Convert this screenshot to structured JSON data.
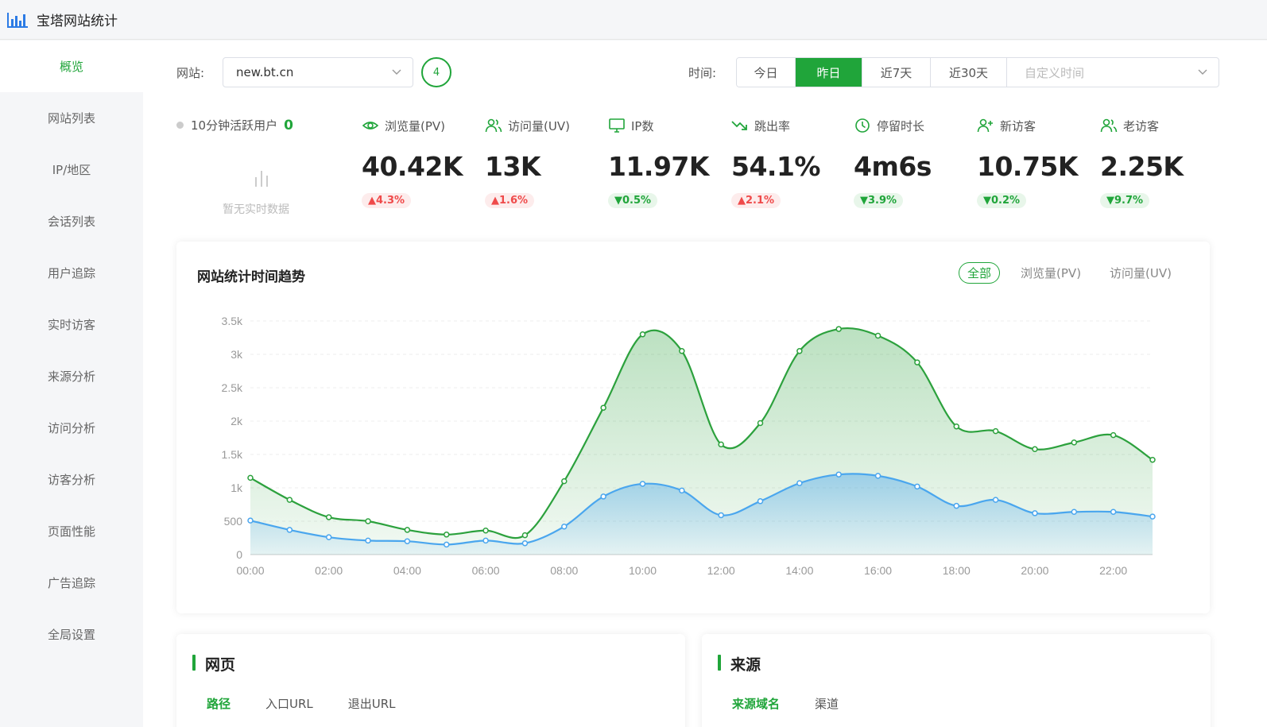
{
  "app": {
    "title": "宝塔网站统计"
  },
  "sidebar": {
    "items": [
      {
        "label": "概览",
        "active": true
      },
      {
        "label": "网站列表"
      },
      {
        "label": "IP/地区"
      },
      {
        "label": "会话列表"
      },
      {
        "label": "用户追踪"
      },
      {
        "label": "实时访客"
      },
      {
        "label": "来源分析"
      },
      {
        "label": "访问分析"
      },
      {
        "label": "访客分析"
      },
      {
        "label": "页面性能"
      },
      {
        "label": "广告追踪"
      },
      {
        "label": "全局设置"
      }
    ]
  },
  "toolbar": {
    "site_label": "网站:",
    "site_value": "new.bt.cn",
    "site_count": "4",
    "time_label": "时间:",
    "time_options": [
      "今日",
      "昨日",
      "近7天",
      "近30天"
    ],
    "time_active": "昨日",
    "custom_time_placeholder": "自定义时间"
  },
  "realtime": {
    "label": "10分钟活跃用户",
    "value": "0",
    "empty_text": "暂无实时数据"
  },
  "metrics": [
    {
      "label": "浏览量(PV)",
      "value": "40.42K",
      "change": "▲4.3%",
      "trend": "up",
      "icon": "eye-icon"
    },
    {
      "label": "访问量(UV)",
      "value": "13K",
      "change": "▲1.6%",
      "trend": "up",
      "icon": "users-icon"
    },
    {
      "label": "IP数",
      "value": "11.97K",
      "change": "▼0.5%",
      "trend": "down",
      "icon": "monitor-icon"
    },
    {
      "label": "跳出率",
      "value": "54.1%",
      "change": "▲2.1%",
      "trend": "up",
      "icon": "trend-down-icon"
    },
    {
      "label": "停留时长",
      "value": "4m6s",
      "change": "▼3.9%",
      "trend": "down",
      "icon": "clock-icon"
    },
    {
      "label": "新访客",
      "value": "10.75K",
      "change": "▼0.2%",
      "trend": "down",
      "icon": "user-plus-icon"
    },
    {
      "label": "老访客",
      "value": "2.25K",
      "change": "▼9.7%",
      "trend": "down",
      "icon": "users-icon"
    }
  ],
  "trend_card": {
    "title": "网站统计时间趋势",
    "filters": [
      "全部",
      "浏览量(PV)",
      "访问量(UV)"
    ],
    "active_filter": "全部"
  },
  "colors": {
    "accent": "#20a53a",
    "pv": "#2ca13d",
    "uv": "#4aa6ee",
    "up": "#ef4a4a",
    "down": "#20a53a"
  },
  "chart_data": {
    "type": "area",
    "x": [
      "00:00",
      "01:00",
      "02:00",
      "03:00",
      "04:00",
      "05:00",
      "06:00",
      "07:00",
      "08:00",
      "09:00",
      "10:00",
      "11:00",
      "12:00",
      "13:00",
      "14:00",
      "15:00",
      "16:00",
      "17:00",
      "18:00",
      "19:00",
      "20:00",
      "21:00",
      "22:00",
      "23:00"
    ],
    "xticks": [
      "00:00",
      "02:00",
      "04:00",
      "06:00",
      "08:00",
      "10:00",
      "12:00",
      "14:00",
      "16:00",
      "18:00",
      "20:00",
      "22:00"
    ],
    "yticks": [
      "0",
      "500",
      "1k",
      "1.5k",
      "2k",
      "2.5k",
      "3k",
      "3.5k"
    ],
    "ylim": [
      0,
      3500
    ],
    "series": [
      {
        "name": "浏览量(PV)",
        "values": [
          1150,
          820,
          560,
          500,
          370,
          300,
          360,
          290,
          1100,
          2200,
          3300,
          3050,
          1650,
          1970,
          3050,
          3380,
          3280,
          2880,
          1920,
          1850,
          1580,
          1680,
          1790,
          1420
        ]
      },
      {
        "name": "访问量(UV)",
        "values": [
          510,
          370,
          260,
          210,
          200,
          150,
          210,
          170,
          420,
          870,
          1060,
          960,
          590,
          800,
          1070,
          1200,
          1180,
          1020,
          730,
          820,
          620,
          640,
          640,
          570
        ]
      }
    ],
    "grid": true
  },
  "bottom_cards": [
    {
      "title": "网页",
      "tabs": [
        "路径",
        "入口URL",
        "退出URL"
      ],
      "active_tab": "路径"
    },
    {
      "title": "来源",
      "tabs": [
        "来源域名",
        "渠道"
      ],
      "active_tab": "来源域名"
    }
  ]
}
